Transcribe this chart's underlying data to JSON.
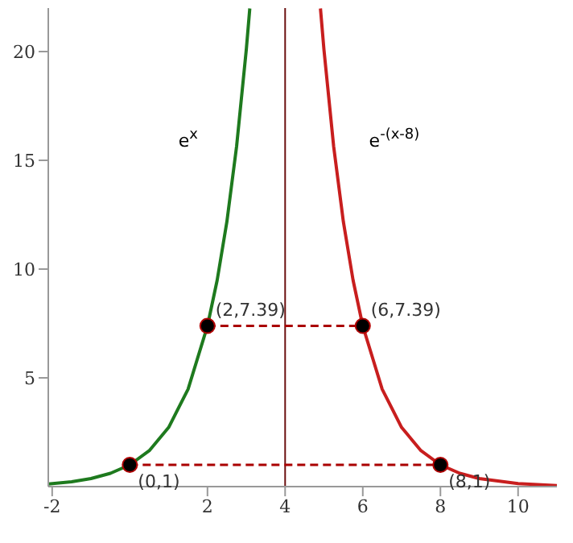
{
  "chart_data": {
    "type": "line",
    "xlim": [
      -2.1,
      11
    ],
    "ylim": [
      0,
      22
    ],
    "xticks": [
      -2,
      2,
      4,
      6,
      8,
      10
    ],
    "yticks": [
      5,
      10,
      15,
      20
    ],
    "grid": false,
    "legend": false,
    "series": [
      {
        "name": "e$^{x}$",
        "color": "#1e7a1e",
        "x": [
          -2.1,
          -1.5,
          -1,
          -0.5,
          0,
          0.5,
          1,
          1.5,
          2,
          2.25,
          2.5,
          2.75,
          3,
          3.09
        ],
        "values": [
          0.12,
          0.22,
          0.37,
          0.61,
          1,
          1.65,
          2.72,
          4.48,
          7.39,
          9.49,
          12.18,
          15.64,
          20.09,
          21.98
        ]
      },
      {
        "name": "e$^{-(x-8)}$",
        "color": "#c81e1e",
        "x": [
          4.91,
          5,
          5.25,
          5.5,
          5.75,
          6,
          6.5,
          7,
          7.5,
          8,
          8.5,
          9,
          10,
          11
        ],
        "values": [
          21.98,
          20.09,
          15.64,
          12.18,
          9.49,
          7.39,
          4.48,
          2.72,
          1.65,
          1,
          0.61,
          0.37,
          0.14,
          0.05
        ]
      },
      {
        "type": "line",
        "color": "#aa0000",
        "line_style": "dashed",
        "x": [
          2,
          6
        ],
        "values": [
          7.39,
          7.39
        ]
      },
      {
        "type": "line",
        "color": "#aa0000",
        "line_style": "dashed",
        "x": [
          0,
          8
        ],
        "values": [
          1,
          1
        ]
      },
      {
        "type": "scatter",
        "color": "#000000",
        "marker": "circle",
        "x": [
          0,
          2,
          6,
          8
        ],
        "values": [
          1,
          7.39,
          7.39,
          1
        ]
      }
    ],
    "annotations": [
      {
        "text": "(0,1)",
        "x": 0,
        "y": 1
      },
      {
        "text": "(2,7.39)",
        "x": 2,
        "y": 7.39
      },
      {
        "text": "(6,7.39)",
        "x": 6,
        "y": 7.39
      },
      {
        "text": "(8,1)",
        "x": 8,
        "y": 1
      }
    ],
    "ref_lines": [
      {
        "axis": "x",
        "value": 4,
        "color": "#6b1010"
      }
    ]
  }
}
